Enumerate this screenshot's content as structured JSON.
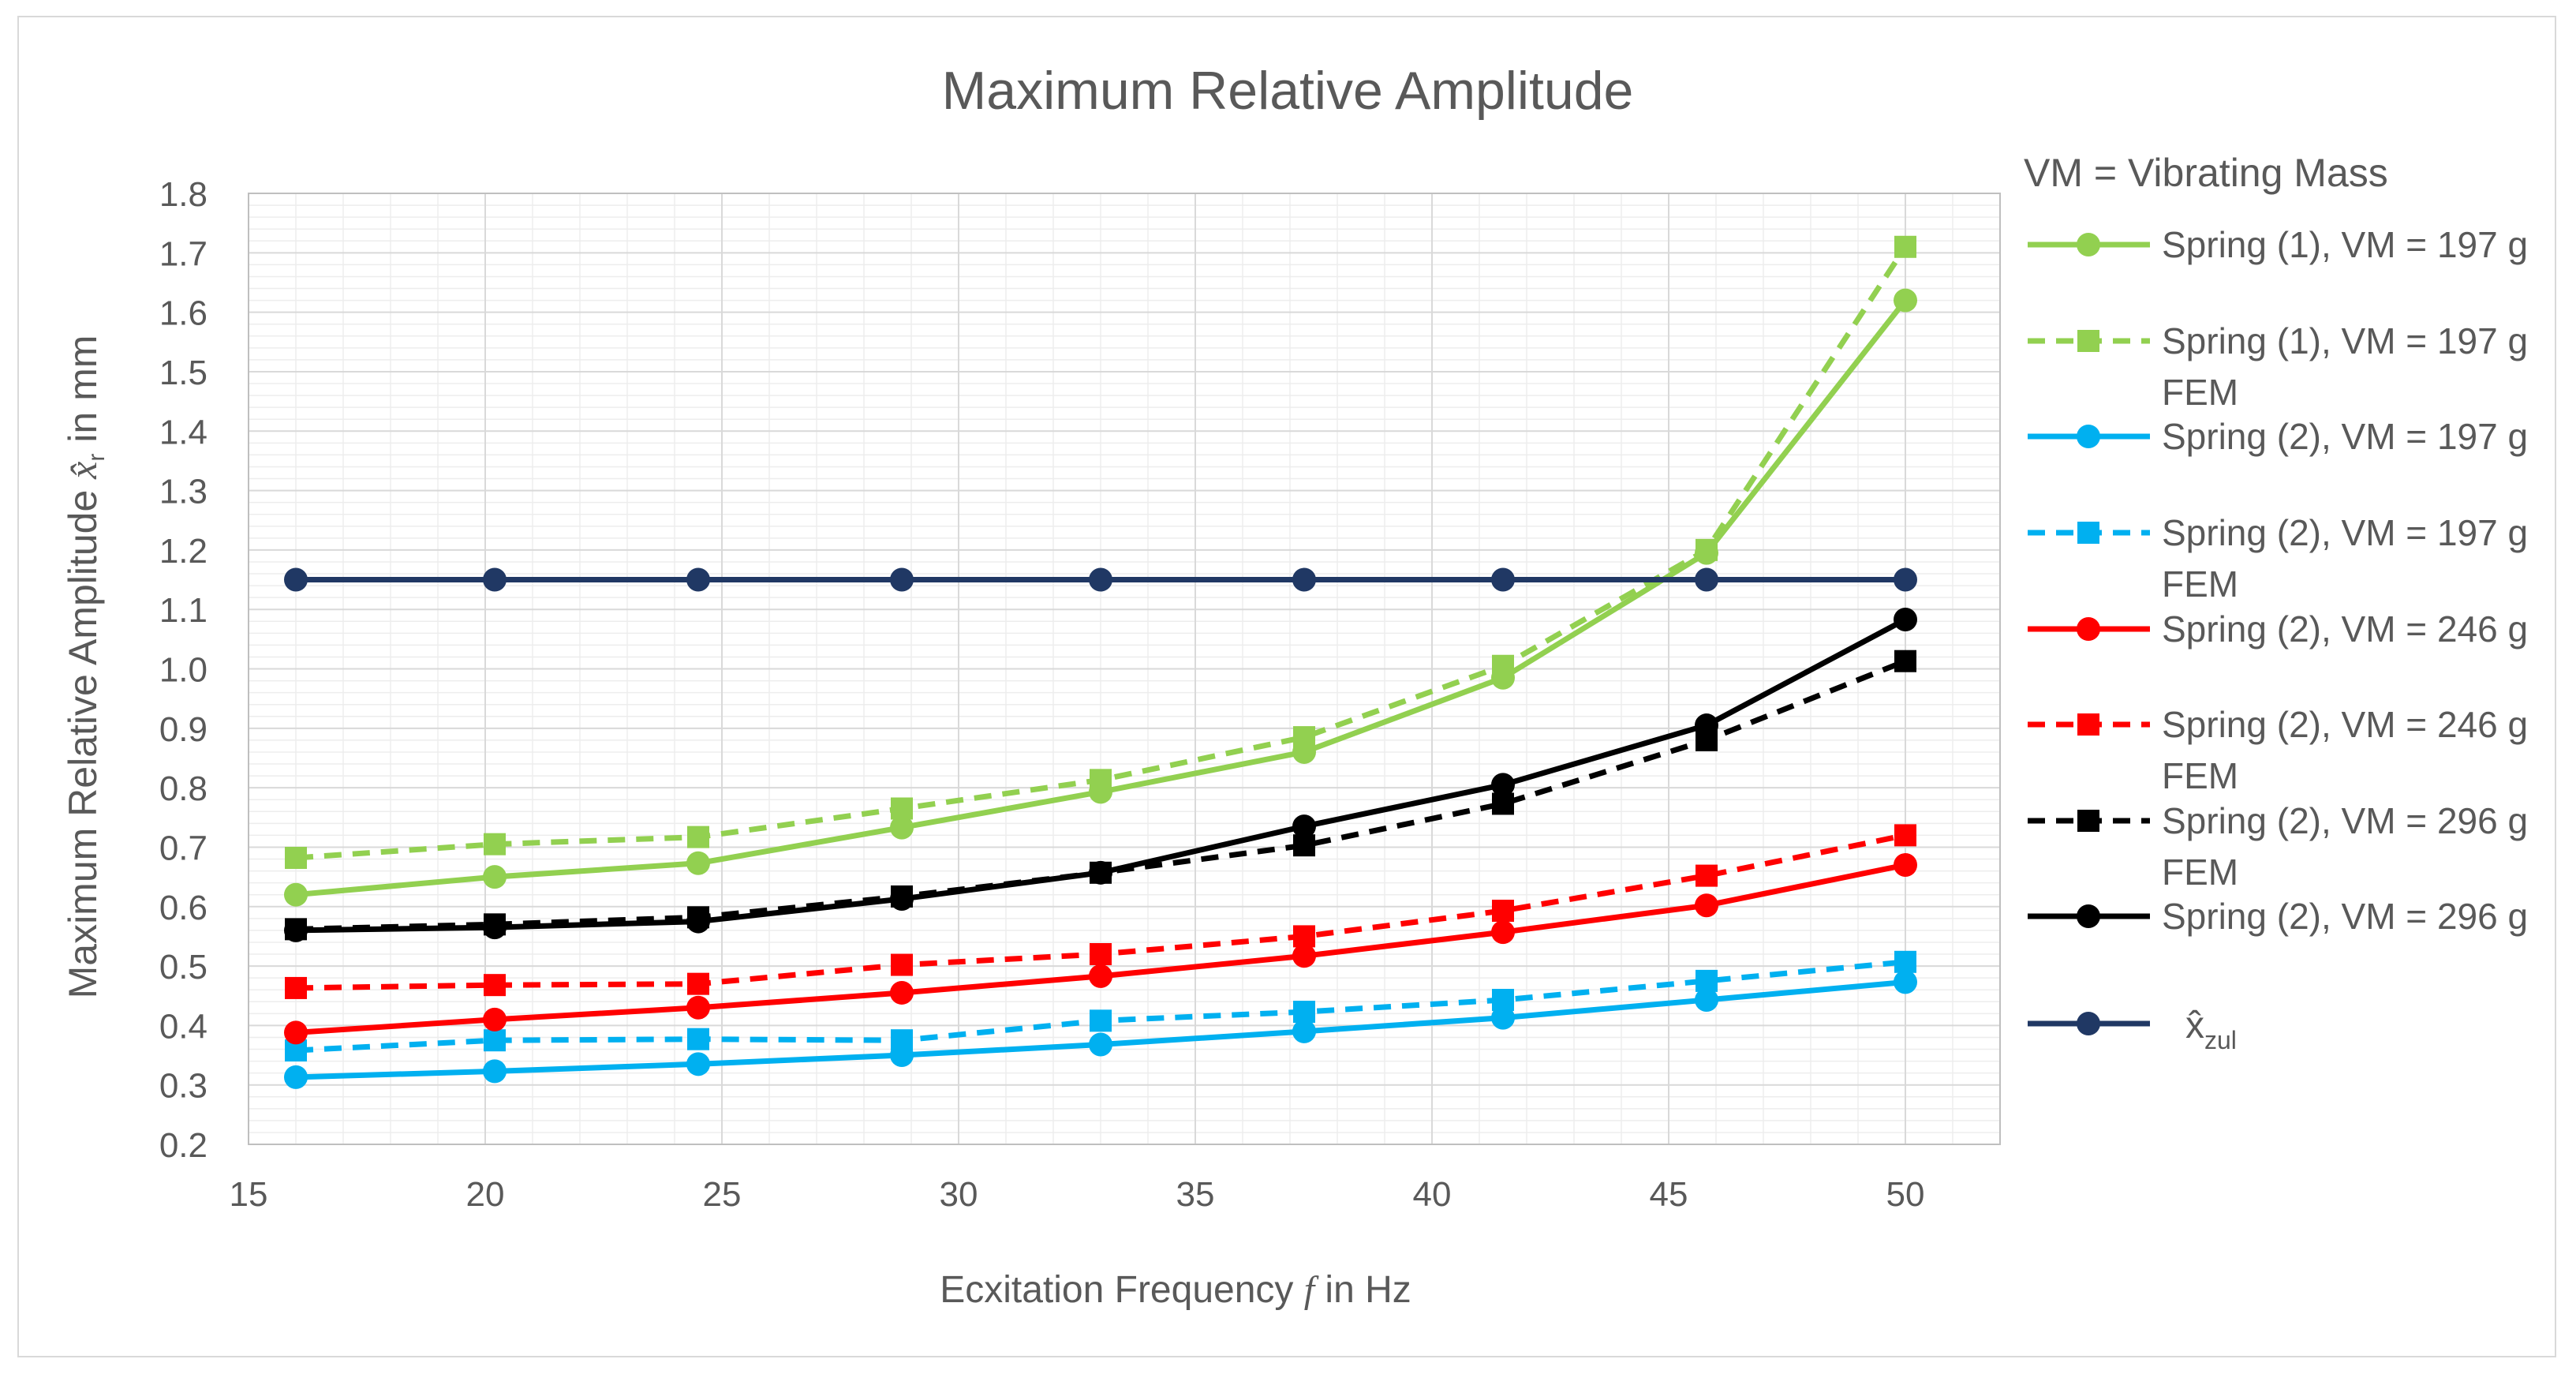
{
  "chart_data": {
    "type": "line",
    "title": "Maximum Relative Amplitude",
    "xlabel": "Ecxitation Frequency",
    "xlabel_symbol": "f",
    "xlabel_unit": " in Hz",
    "ylabel": "Maximum Relative Amplitude",
    "ylabel_symbol": "x̂",
    "ylabel_subscript": "r",
    "ylabel_unit": "  in mm",
    "xlim": [
      15,
      52
    ],
    "ylim": [
      0.2,
      1.8
    ],
    "xticks": [
      15,
      20,
      25,
      30,
      35,
      40,
      45,
      50
    ],
    "yticks": [
      "0.2",
      "0.3",
      "0.4",
      "0.5",
      "0.6",
      "0.7",
      "0.8",
      "0.9",
      "1.0",
      "1.1",
      "1.2",
      "1.3",
      "1.4",
      "1.5",
      "1.6",
      "1.7",
      "1.8"
    ],
    "legend_title": "VM = Vibrating Mass",
    "legend_position": "right",
    "grid": true,
    "x": [
      16,
      20.2,
      24.5,
      28.8,
      33,
      37.3,
      41.5,
      45.8,
      50
    ],
    "series": [
      {
        "name": "Spring (1), VM = 197 g",
        "name_line2": "",
        "color": "#92d050",
        "dash": false,
        "marker": "circle",
        "values": [
          0.62,
          0.65,
          0.673,
          0.733,
          0.793,
          0.86,
          0.985,
          1.195,
          1.62
        ]
      },
      {
        "name": "Spring (1), VM = 197 g",
        "name_line2": "FEM",
        "color": "#92d050",
        "dash": true,
        "marker": "square",
        "values": [
          0.682,
          0.705,
          0.717,
          0.765,
          0.813,
          0.885,
          1.005,
          1.2,
          1.71
        ]
      },
      {
        "name": "Spring (2), VM = 197 g",
        "name_line2": "",
        "color": "#00b0f0",
        "dash": false,
        "marker": "circle",
        "values": [
          0.313,
          0.323,
          0.335,
          0.35,
          0.368,
          0.39,
          0.413,
          0.443,
          0.473
        ]
      },
      {
        "name": "Spring (2), VM = 197 g",
        "name_line2": "FEM",
        "color": "#00b0f0",
        "dash": true,
        "marker": "square",
        "values": [
          0.358,
          0.375,
          0.377,
          0.375,
          0.408,
          0.423,
          0.443,
          0.475,
          0.507
        ]
      },
      {
        "name": "Spring (2), VM = 246 g",
        "name_line2": "",
        "color": "#ff0000",
        "dash": false,
        "marker": "circle",
        "values": [
          0.388,
          0.41,
          0.43,
          0.455,
          0.483,
          0.517,
          0.557,
          0.602,
          0.67
        ]
      },
      {
        "name": "Spring (2), VM = 246 g",
        "name_line2": "FEM",
        "color": "#ff0000",
        "dash": true,
        "marker": "square",
        "values": [
          0.463,
          0.468,
          0.47,
          0.502,
          0.52,
          0.55,
          0.593,
          0.652,
          0.72
        ]
      },
      {
        "name": "Spring (2), VM = 296 g",
        "name_line2": "FEM",
        "color": "#000000",
        "dash": true,
        "marker": "square",
        "values": [
          0.562,
          0.57,
          0.582,
          0.617,
          0.657,
          0.703,
          0.773,
          0.88,
          1.013
        ]
      },
      {
        "name": "Spring (2), VM = 296 g",
        "name_line2": "",
        "color": "#000000",
        "dash": false,
        "marker": "circle",
        "values": [
          0.56,
          0.565,
          0.575,
          0.613,
          0.657,
          0.735,
          0.805,
          0.905,
          1.083
        ]
      },
      {
        "name": "x̂",
        "name_line2": "",
        "subscript": "zul",
        "color": "#203864",
        "dash": false,
        "marker": "circle",
        "values": [
          1.15,
          1.15,
          1.15,
          1.15,
          1.15,
          1.15,
          1.15,
          1.15,
          1.15
        ]
      }
    ]
  }
}
